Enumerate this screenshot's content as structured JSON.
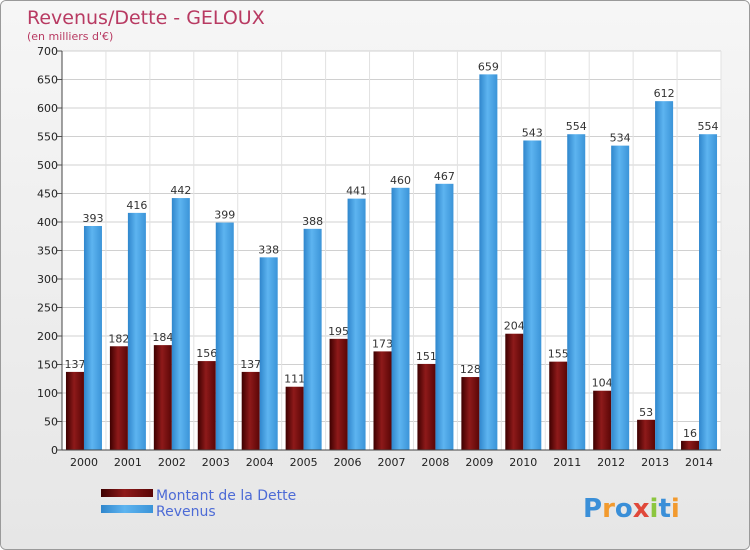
{
  "chart_data": {
    "type": "bar",
    "title": "Revenus/Dette - GELOUX",
    "subtitle": "(en milliers d'€)",
    "categories": [
      "2000",
      "2001",
      "2002",
      "2003",
      "2004",
      "2005",
      "2006",
      "2007",
      "2008",
      "2009",
      "2010",
      "2011",
      "2012",
      "2013",
      "2014"
    ],
    "series": [
      {
        "name": "Montant de la Dette",
        "color": "#7a1010",
        "values": [
          137,
          182,
          184,
          156,
          137,
          111,
          195,
          173,
          151,
          128,
          204,
          155,
          104,
          53,
          16
        ]
      },
      {
        "name": "Revenus",
        "color": "#4ea6e8",
        "values": [
          393,
          416,
          442,
          399,
          338,
          388,
          441,
          460,
          467,
          659,
          543,
          554,
          534,
          612,
          554
        ]
      }
    ],
    "ylim": [
      0,
      700
    ],
    "yticks": [
      0,
      50,
      100,
      150,
      200,
      250,
      300,
      350,
      400,
      450,
      500,
      550,
      600,
      650,
      700
    ],
    "grid": true,
    "legend_position": "bottom-left"
  },
  "logo": {
    "text": "Proxiti",
    "colors": [
      "#3a8fd8",
      "#f29a2e",
      "#3a8fd8",
      "#e0483a",
      "#8cc63f",
      "#3a8fd8",
      "#f29a2e"
    ]
  }
}
